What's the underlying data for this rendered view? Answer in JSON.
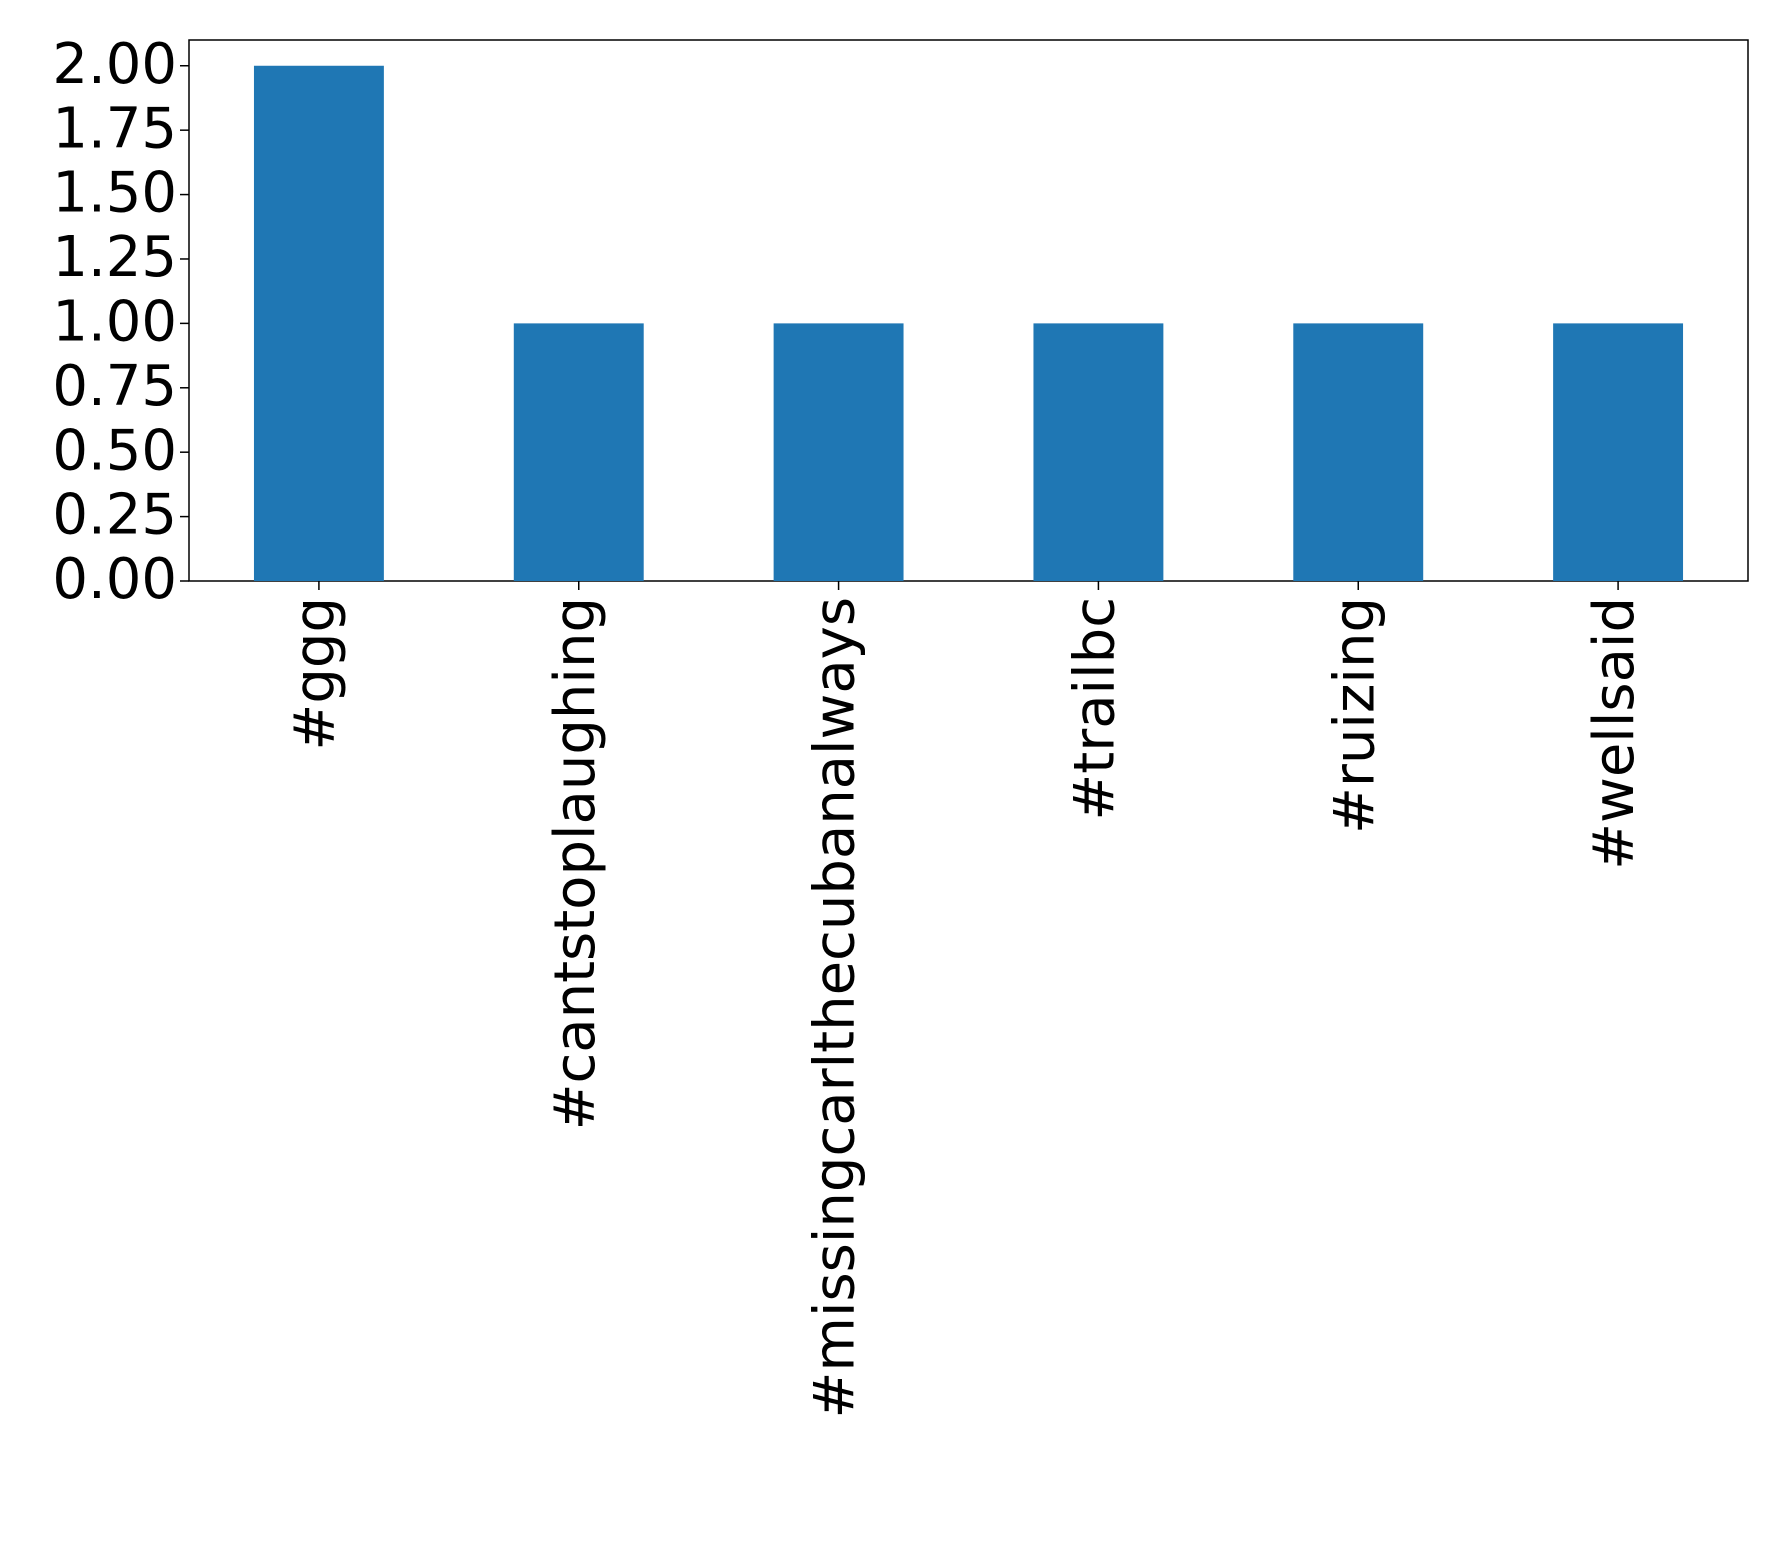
{
  "chart_data": {
    "type": "bar",
    "categories": [
      "#ggg",
      "#cantstoplaughing",
      "#missingcarlthecubanalways",
      "#trailbc",
      "#ruizing",
      "#wellsaid"
    ],
    "values": [
      2,
      1,
      1,
      1,
      1,
      1
    ],
    "color": "#1f77b4",
    "ylim": [
      0,
      2.1
    ],
    "yticks": [
      {
        "value": 0,
        "label": "0.00"
      },
      {
        "value": 0.25,
        "label": "0.25"
      },
      {
        "value": 0.5,
        "label": "0.50"
      },
      {
        "value": 0.75,
        "label": "0.75"
      },
      {
        "value": 1,
        "label": "1.00"
      },
      {
        "value": 1.25,
        "label": "1.25"
      },
      {
        "value": 1.5,
        "label": "1.50"
      },
      {
        "value": 1.75,
        "label": "1.75"
      },
      {
        "value": 2,
        "label": "2.00"
      }
    ],
    "grid": false
  }
}
